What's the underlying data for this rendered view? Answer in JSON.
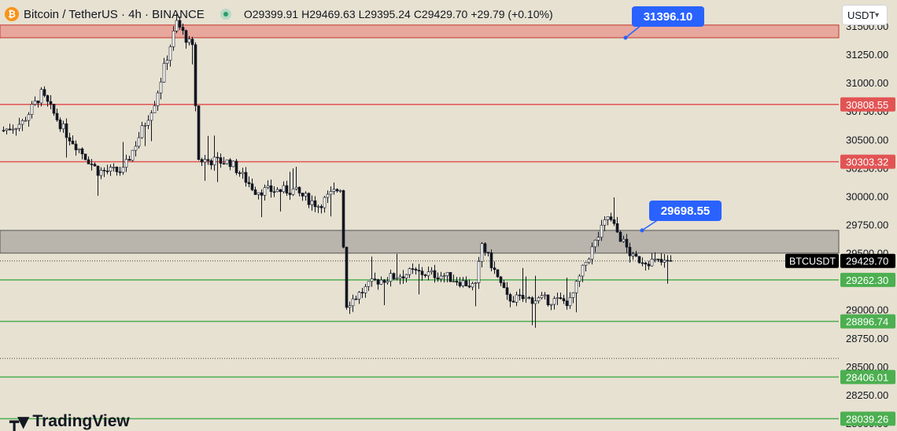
{
  "header": {
    "symbol_title": "Bitcoin / TetherUS · 4h · BINANCE",
    "coin_icon": "bitcoin-icon",
    "open": "O29399.91",
    "high": "H29469.63",
    "low": "L29395.24",
    "close": "C29429.70",
    "change": "+29.79 (+0.10%)"
  },
  "currency_selector": "USDT",
  "branding": "TradingView",
  "colors": {
    "background": "#e7e1d1",
    "up": "#ffffff",
    "down": "#131722",
    "resistance": "#e25454",
    "support": "#4caf50",
    "callout": "#2962ff",
    "zone_top": "#e8a79d",
    "zone_mid": "#b9b4ac"
  },
  "chart_data": {
    "type": "candlestick",
    "symbol": "BTCUSDT",
    "timeframe": "4h",
    "current_price": 29429.7,
    "y_range": [
      27980,
      31650
    ],
    "y_ticks": [
      28000,
      28250,
      28500,
      28750,
      29000,
      29250,
      29500,
      29750,
      30000,
      30250,
      30500,
      30750,
      31000,
      31250,
      31500
    ],
    "y_tick_labels": [
      "28000.00",
      "28250.00",
      "28500.00",
      "28750.00",
      "29000.00",
      "29250.00",
      "29500.00",
      "29750.00",
      "30000.00",
      "30250.00",
      "30500.00",
      "30750.00",
      "31000.00",
      "31250.00",
      "31500.00"
    ],
    "levels": [
      {
        "price": 30808.55,
        "label": "30808.55",
        "kind": "resistance"
      },
      {
        "price": 30303.32,
        "label": "30303.32",
        "kind": "resistance"
      },
      {
        "price": 29262.3,
        "label": "29262.30",
        "kind": "support"
      },
      {
        "price": 28896.74,
        "label": "28896.74",
        "kind": "support"
      },
      {
        "price": 28406.01,
        "label": "28406.01",
        "kind": "support"
      },
      {
        "price": 28039.26,
        "label": "28039.26",
        "kind": "support"
      }
    ],
    "zones": [
      {
        "from": 31396.1,
        "to": 31508,
        "kind": "resistance"
      },
      {
        "from": 29498,
        "to": 29698.55,
        "kind": "range"
      }
    ],
    "callouts": [
      {
        "text": "31396.10",
        "price": 31396.1
      },
      {
        "text": "29698.55",
        "price": 29698.55
      }
    ],
    "dotted_levels": [
      29429.7,
      28570
    ],
    "series_tag": "BTCUSDT",
    "price_tag": "29429.70",
    "candle_count": 213,
    "trend_anchors": [
      [
        0,
        30580
      ],
      [
        6,
        30650
      ],
      [
        12,
        30900
      ],
      [
        20,
        30550
      ],
      [
        30,
        30220
      ],
      [
        38,
        30220
      ],
      [
        48,
        30830
      ],
      [
        55,
        31530
      ],
      [
        60,
        31300
      ],
      [
        62,
        30320
      ],
      [
        72,
        30300
      ],
      [
        80,
        30050
      ],
      [
        92,
        30050
      ],
      [
        100,
        29920
      ],
      [
        107,
        30080
      ],
      [
        109,
        29050
      ],
      [
        118,
        29250
      ],
      [
        130,
        29330
      ],
      [
        140,
        29300
      ],
      [
        150,
        29200
      ],
      [
        152,
        29580
      ],
      [
        160,
        29100
      ],
      [
        170,
        29090
      ],
      [
        180,
        29070
      ],
      [
        185,
        29420
      ],
      [
        192,
        29820
      ],
      [
        200,
        29450
      ],
      [
        210,
        29410
      ],
      [
        212,
        29430
      ]
    ]
  }
}
